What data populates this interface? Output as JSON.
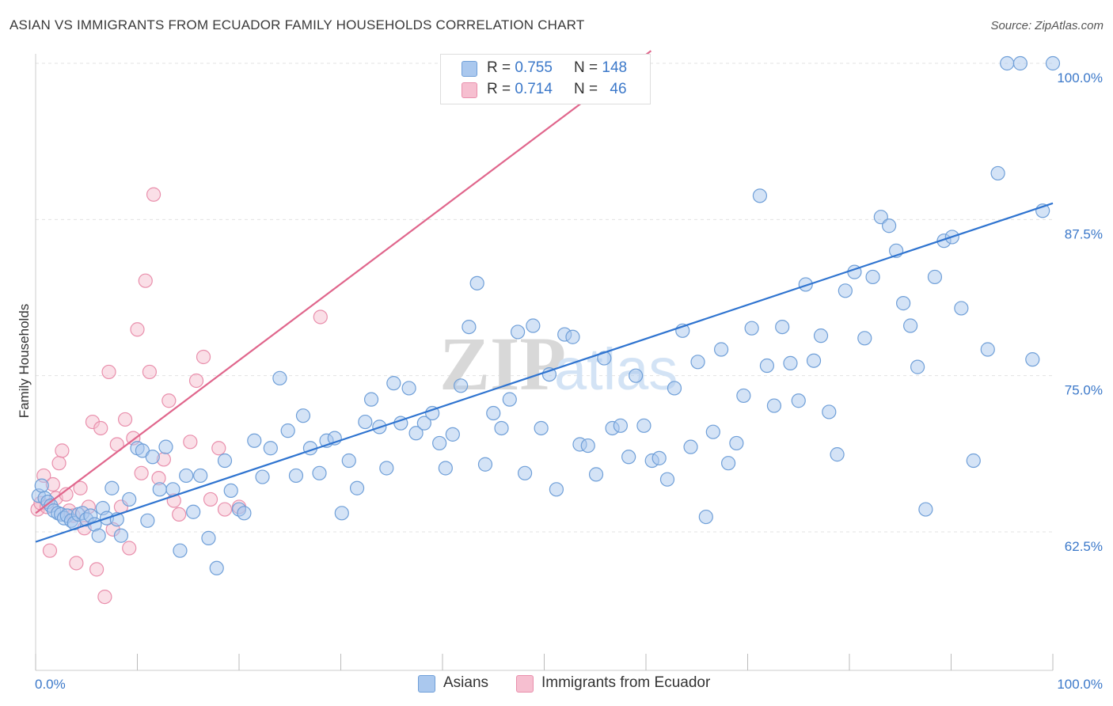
{
  "title": "ASIAN VS IMMIGRANTS FROM ECUADOR FAMILY HOUSEHOLDS CORRELATION CHART",
  "source": "Source: ZipAtlas.com",
  "watermark": {
    "zip": "ZIP",
    "atlas": "atlas"
  },
  "legend": {
    "r_label": "R =",
    "n_label": "N =",
    "rows": [
      {
        "series": "Asians",
        "r": "0.755",
        "n": "148"
      },
      {
        "series": "Immigrants from Ecuador",
        "r": "0.714",
        "n": "46"
      }
    ]
  },
  "colors": {
    "asians_fill": "#aac8ee",
    "asians_stroke": "#6f9fd8",
    "asians_line": "#2f74d0",
    "ecuador_fill": "#f6bfd0",
    "ecuador_stroke": "#e98fac",
    "ecuador_line": "#e0668c",
    "tick_text": "#3b78c9",
    "grid": "#e3e3e3"
  },
  "chart_data": {
    "type": "scatter",
    "title": "ASIAN VS IMMIGRANTS FROM ECUADOR FAMILY HOUSEHOLDS CORRELATION CHART",
    "xlabel": "",
    "ylabel": "Family Households",
    "xlim": [
      0,
      100
    ],
    "ylim": [
      50,
      101.5
    ],
    "x_tick_labels": [
      "0.0%",
      "100.0%"
    ],
    "y_ticks": [
      62.5,
      75.0,
      87.5,
      100.0
    ],
    "y_tick_labels": [
      "62.5%",
      "75.0%",
      "87.5%",
      "100.0%"
    ],
    "grid": true,
    "legend_position": "top-center",
    "series": [
      {
        "name": "Asians",
        "r": 0.755,
        "n": 148,
        "trend": {
          "x": [
            0,
            100
          ],
          "y": [
            61.7,
            88.8
          ]
        },
        "points": [
          [
            0.3,
            65.4
          ],
          [
            0.6,
            66.2
          ],
          [
            0.9,
            65.2
          ],
          [
            1.2,
            64.9
          ],
          [
            1.5,
            64.6
          ],
          [
            1.8,
            64.2
          ],
          [
            2.2,
            64.0
          ],
          [
            2.5,
            63.9
          ],
          [
            2.8,
            63.6
          ],
          [
            3.1,
            63.8
          ],
          [
            3.5,
            63.4
          ],
          [
            3.8,
            63.2
          ],
          [
            4.2,
            63.9
          ],
          [
            4.6,
            64.0
          ],
          [
            5.0,
            63.5
          ],
          [
            5.4,
            63.8
          ],
          [
            5.8,
            63.1
          ],
          [
            6.2,
            62.2
          ],
          [
            6.6,
            64.4
          ],
          [
            7.0,
            63.6
          ],
          [
            7.5,
            66.0
          ],
          [
            8.0,
            63.5
          ],
          [
            8.4,
            62.2
          ],
          [
            9.2,
            65.1
          ],
          [
            10.0,
            69.2
          ],
          [
            10.5,
            69.0
          ],
          [
            11.0,
            63.4
          ],
          [
            11.5,
            68.5
          ],
          [
            12.2,
            65.9
          ],
          [
            12.8,
            69.3
          ],
          [
            13.5,
            65.9
          ],
          [
            14.2,
            61.0
          ],
          [
            14.8,
            67.0
          ],
          [
            15.5,
            64.1
          ],
          [
            16.2,
            67.0
          ],
          [
            17.0,
            62.0
          ],
          [
            17.8,
            59.6
          ],
          [
            18.6,
            68.2
          ],
          [
            19.2,
            65.8
          ],
          [
            20.0,
            64.3
          ],
          [
            20.5,
            64.0
          ],
          [
            21.5,
            69.8
          ],
          [
            22.3,
            66.9
          ],
          [
            23.1,
            69.2
          ],
          [
            24.0,
            74.8
          ],
          [
            24.8,
            70.6
          ],
          [
            25.6,
            67.0
          ],
          [
            26.3,
            71.8
          ],
          [
            27.0,
            69.2
          ],
          [
            27.9,
            67.2
          ],
          [
            28.6,
            69.8
          ],
          [
            29.4,
            70.0
          ],
          [
            30.1,
            64.0
          ],
          [
            30.8,
            68.2
          ],
          [
            31.6,
            66.0
          ],
          [
            32.4,
            71.3
          ],
          [
            33.0,
            73.1
          ],
          [
            33.8,
            70.9
          ],
          [
            34.5,
            67.6
          ],
          [
            35.2,
            74.4
          ],
          [
            35.9,
            71.2
          ],
          [
            36.7,
            74.0
          ],
          [
            37.4,
            70.4
          ],
          [
            38.2,
            71.2
          ],
          [
            39.0,
            72.0
          ],
          [
            39.7,
            69.6
          ],
          [
            40.3,
            67.6
          ],
          [
            41.0,
            70.3
          ],
          [
            41.8,
            74.2
          ],
          [
            42.6,
            78.9
          ],
          [
            43.4,
            82.4
          ],
          [
            44.2,
            67.9
          ],
          [
            45.0,
            72.0
          ],
          [
            45.8,
            70.8
          ],
          [
            46.6,
            73.1
          ],
          [
            47.4,
            78.5
          ],
          [
            48.1,
            67.2
          ],
          [
            48.9,
            79.0
          ],
          [
            49.7,
            70.8
          ],
          [
            50.5,
            75.1
          ],
          [
            51.2,
            65.9
          ],
          [
            52.0,
            78.3
          ],
          [
            52.8,
            78.1
          ],
          [
            53.5,
            69.5
          ],
          [
            54.3,
            69.4
          ],
          [
            55.1,
            67.1
          ],
          [
            55.9,
            76.4
          ],
          [
            56.7,
            70.8
          ],
          [
            57.5,
            71.0
          ],
          [
            58.3,
            68.5
          ],
          [
            59.0,
            75.0
          ],
          [
            59.8,
            71.0
          ],
          [
            60.6,
            68.2
          ],
          [
            61.3,
            68.4
          ],
          [
            62.1,
            66.7
          ],
          [
            62.8,
            74.0
          ],
          [
            63.6,
            78.6
          ],
          [
            64.4,
            69.3
          ],
          [
            65.1,
            76.1
          ],
          [
            65.9,
            63.7
          ],
          [
            66.6,
            70.5
          ],
          [
            67.4,
            77.1
          ],
          [
            68.1,
            68.0
          ],
          [
            68.9,
            69.6
          ],
          [
            69.6,
            73.4
          ],
          [
            70.4,
            78.8
          ],
          [
            71.2,
            89.4
          ],
          [
            71.9,
            75.8
          ],
          [
            72.6,
            72.6
          ],
          [
            73.4,
            78.9
          ],
          [
            74.2,
            76.0
          ],
          [
            75.0,
            73.0
          ],
          [
            75.7,
            82.3
          ],
          [
            76.5,
            76.2
          ],
          [
            77.2,
            78.2
          ],
          [
            78.0,
            72.1
          ],
          [
            78.8,
            68.7
          ],
          [
            79.6,
            81.8
          ],
          [
            80.5,
            83.3
          ],
          [
            81.5,
            78.0
          ],
          [
            82.3,
            82.9
          ],
          [
            83.1,
            87.7
          ],
          [
            83.9,
            87.0
          ],
          [
            84.6,
            85.0
          ],
          [
            85.3,
            80.8
          ],
          [
            86.0,
            79.0
          ],
          [
            86.7,
            75.7
          ],
          [
            87.5,
            64.3
          ],
          [
            88.4,
            82.9
          ],
          [
            89.3,
            85.8
          ],
          [
            90.1,
            86.1
          ],
          [
            91.0,
            80.4
          ],
          [
            92.2,
            68.2
          ],
          [
            93.6,
            77.1
          ],
          [
            94.6,
            91.2
          ],
          [
            95.5,
            100.0
          ],
          [
            96.8,
            100.0
          ],
          [
            98.0,
            76.3
          ],
          [
            99.0,
            88.2
          ],
          [
            100.0,
            100.0
          ]
        ]
      },
      {
        "name": "Immigrants from Ecuador",
        "r": 0.714,
        "n": 46,
        "trend": {
          "x": [
            0,
            60.5
          ],
          "y": [
            64.0,
            101.0
          ]
        },
        "points": [
          [
            0.2,
            64.3
          ],
          [
            0.5,
            64.8
          ],
          [
            0.8,
            67.0
          ],
          [
            1.1,
            64.5
          ],
          [
            1.4,
            61.0
          ],
          [
            1.7,
            66.3
          ],
          [
            2.0,
            65.2
          ],
          [
            2.3,
            68.0
          ],
          [
            2.6,
            69.0
          ],
          [
            3.0,
            65.5
          ],
          [
            3.3,
            64.2
          ],
          [
            3.7,
            63.8
          ],
          [
            4.0,
            60.0
          ],
          [
            4.4,
            66.0
          ],
          [
            4.8,
            62.8
          ],
          [
            5.2,
            64.5
          ],
          [
            5.6,
            71.3
          ],
          [
            6.0,
            59.5
          ],
          [
            6.4,
            70.8
          ],
          [
            6.8,
            57.3
          ],
          [
            7.2,
            75.3
          ],
          [
            7.6,
            62.7
          ],
          [
            8.0,
            69.5
          ],
          [
            8.4,
            64.5
          ],
          [
            8.8,
            71.5
          ],
          [
            9.2,
            61.2
          ],
          [
            9.6,
            70.0
          ],
          [
            10.0,
            78.7
          ],
          [
            10.4,
            67.2
          ],
          [
            10.8,
            82.6
          ],
          [
            11.2,
            75.3
          ],
          [
            11.6,
            89.5
          ],
          [
            12.1,
            66.8
          ],
          [
            12.6,
            68.3
          ],
          [
            13.1,
            73.0
          ],
          [
            13.6,
            65.0
          ],
          [
            14.1,
            63.9
          ],
          [
            15.2,
            69.7
          ],
          [
            15.8,
            74.6
          ],
          [
            16.5,
            76.5
          ],
          [
            17.2,
            65.1
          ],
          [
            18.0,
            69.2
          ],
          [
            18.6,
            64.3
          ],
          [
            20.0,
            64.5
          ],
          [
            28.0,
            79.7
          ],
          [
            59.5,
            100.0
          ]
        ]
      }
    ]
  }
}
